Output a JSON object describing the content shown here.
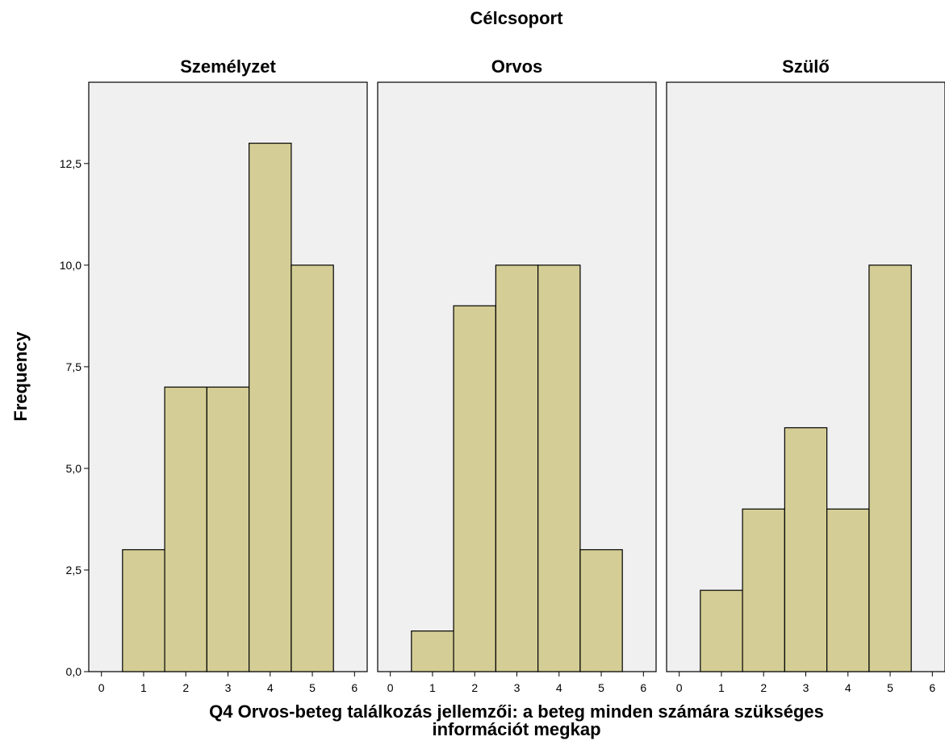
{
  "chart_data": {
    "type": "bar",
    "title": "Célcsoport",
    "xlabel_lines": [
      "Q4 Orvos-beteg találkozás jellemzői: a beteg minden számára szükséges",
      "információt megkap"
    ],
    "ylabel": "Frequency",
    "ylim": [
      0,
      14.5
    ],
    "yticks": [
      "0,0",
      "2,5",
      "5,0",
      "7,5",
      "10,0",
      "12,5"
    ],
    "ytick_values": [
      0,
      2.5,
      5,
      7.5,
      10,
      12.5
    ],
    "xlim": [
      -0.3,
      6.3
    ],
    "xticks": [
      "0",
      "1",
      "2",
      "3",
      "4",
      "5",
      "6"
    ],
    "grid": false,
    "bar_color": "#d4cd95",
    "panel_bg": "#f0f0f0",
    "facets": [
      {
        "name": "Személyzet",
        "x": [
          1,
          2,
          3,
          4,
          5
        ],
        "values": [
          3,
          7,
          7,
          13,
          10
        ]
      },
      {
        "name": "Orvos",
        "x": [
          1,
          2,
          3,
          4,
          5
        ],
        "values": [
          1,
          9,
          10,
          10,
          3
        ]
      },
      {
        "name": "Szülő",
        "x": [
          1,
          2,
          3,
          4,
          5
        ],
        "values": [
          2,
          4,
          6,
          4,
          10
        ]
      }
    ]
  }
}
